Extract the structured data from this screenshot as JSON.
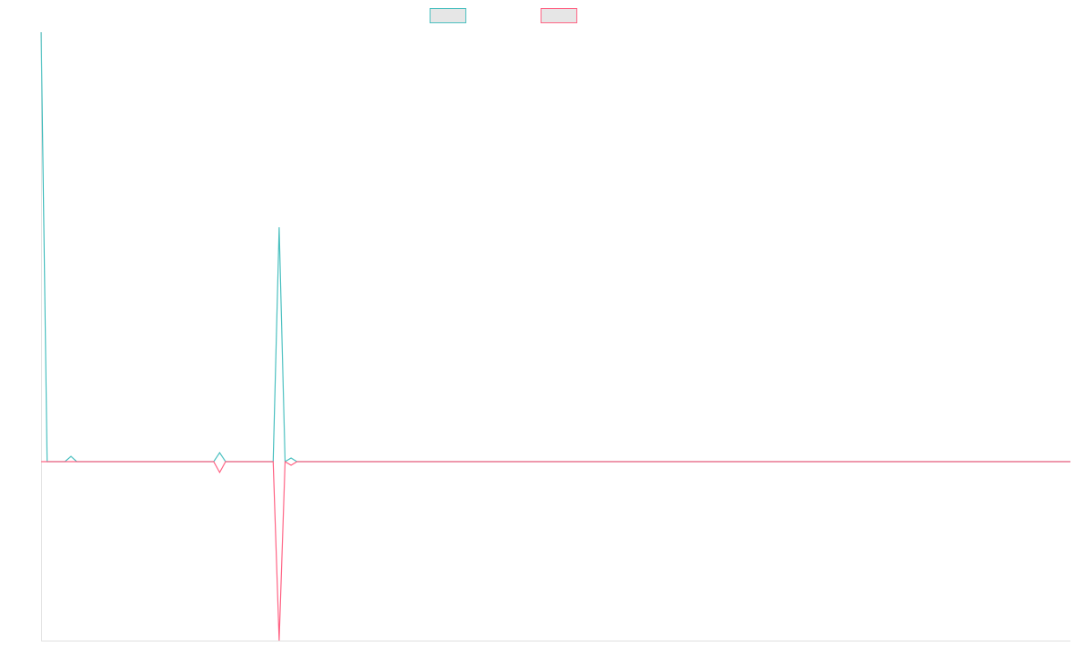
{
  "chart_data": {
    "type": "line",
    "x": [
      0,
      1,
      4,
      5,
      6,
      29,
      30,
      31,
      39,
      40,
      41,
      42,
      43,
      173
    ],
    "xlim": [
      0,
      173
    ],
    "ylim": [
      -1,
      2.4
    ],
    "series": [
      {
        "color": "#4bc0c0",
        "values": [
          2.4,
          0,
          0,
          0.03,
          0,
          0,
          0.05,
          0,
          0,
          1.31,
          0,
          0.02,
          0,
          0
        ]
      },
      {
        "color": "#ff6384",
        "values": [
          0,
          0,
          0,
          0,
          0,
          0,
          -0.06,
          0,
          0,
          -1,
          0,
          -0.02,
          0,
          0
        ]
      }
    ]
  }
}
